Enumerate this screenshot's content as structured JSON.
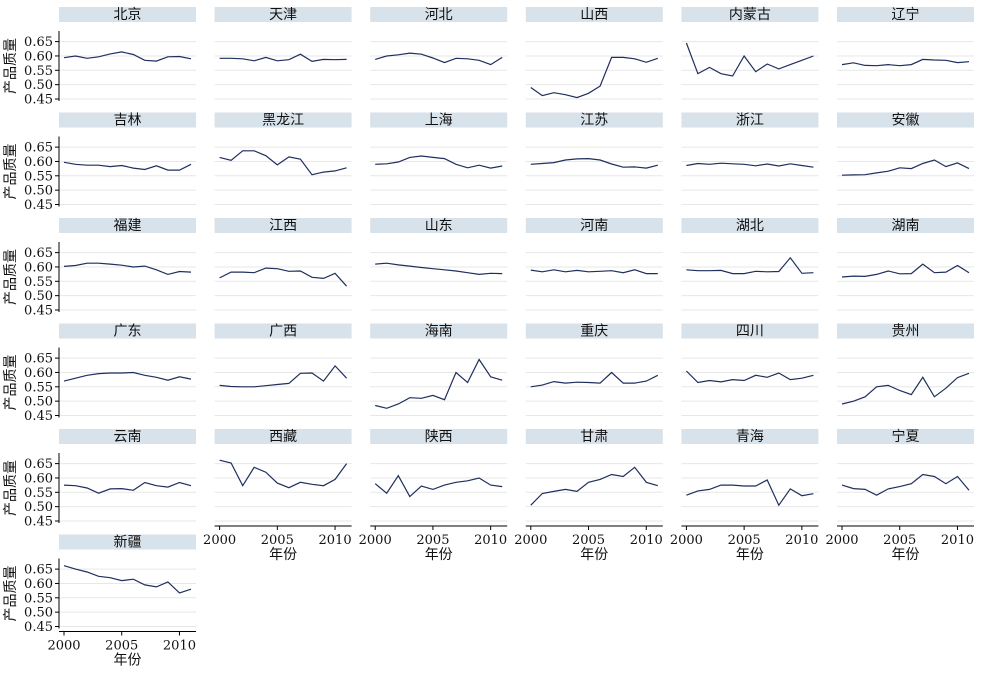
{
  "chart_data": {
    "type": "line",
    "layout": "small-multiples 6 columns",
    "x": [
      2000,
      2001,
      2002,
      2003,
      2004,
      2005,
      2006,
      2007,
      2008,
      2009,
      2010,
      2011
    ],
    "xlim": [
      2000,
      2011
    ],
    "xticks": [
      "2000",
      "2005",
      "2010"
    ],
    "ylim": [
      0.45,
      0.68
    ],
    "yticks": [
      "0.65",
      "0.60",
      "0.55",
      "0.50",
      "0.45"
    ],
    "ylabel": "产品质量",
    "xlabel": "年份",
    "grid": true,
    "series_color": "#1f2f5e",
    "strip_color": "#d8e2ea",
    "series": [
      {
        "name": "北京",
        "values": [
          0.594,
          0.6,
          0.592,
          0.597,
          0.607,
          0.614,
          0.605,
          0.585,
          0.582,
          0.597,
          0.598,
          0.59
        ]
      },
      {
        "name": "天津",
        "values": [
          0.592,
          0.592,
          0.59,
          0.583,
          0.595,
          0.583,
          0.587,
          0.606,
          0.581,
          0.588,
          0.587,
          0.588
        ]
      },
      {
        "name": "河北",
        "values": [
          0.588,
          0.6,
          0.604,
          0.61,
          0.606,
          0.593,
          0.577,
          0.592,
          0.59,
          0.585,
          0.57,
          0.595
        ]
      },
      {
        "name": "山西",
        "values": [
          0.49,
          0.462,
          0.472,
          0.465,
          0.455,
          0.47,
          0.495,
          0.595,
          0.595,
          0.59,
          0.578,
          0.592
        ]
      },
      {
        "name": "内蒙古",
        "values": [
          0.645,
          0.538,
          0.56,
          0.538,
          0.53,
          0.6,
          0.545,
          0.572,
          0.555,
          0.57,
          0.585,
          0.6
        ]
      },
      {
        "name": "辽宁",
        "values": [
          0.57,
          0.576,
          0.567,
          0.566,
          0.57,
          0.566,
          0.57,
          0.588,
          0.586,
          0.585,
          0.577,
          0.58
        ]
      },
      {
        "name": "吉林",
        "values": [
          0.597,
          0.59,
          0.587,
          0.587,
          0.582,
          0.586,
          0.577,
          0.572,
          0.585,
          0.57,
          0.57,
          0.59
        ]
      },
      {
        "name": "黑龙江",
        "values": [
          0.614,
          0.604,
          0.637,
          0.637,
          0.62,
          0.588,
          0.616,
          0.608,
          0.554,
          0.563,
          0.567,
          0.578
        ]
      },
      {
        "name": "上海",
        "values": [
          0.59,
          0.592,
          0.598,
          0.614,
          0.619,
          0.614,
          0.61,
          0.59,
          0.578,
          0.587,
          0.577,
          0.584
        ]
      },
      {
        "name": "江苏",
        "values": [
          0.59,
          0.593,
          0.596,
          0.605,
          0.609,
          0.61,
          0.605,
          0.591,
          0.58,
          0.581,
          0.577,
          0.587
        ]
      },
      {
        "name": "浙江",
        "values": [
          0.586,
          0.593,
          0.59,
          0.594,
          0.592,
          0.59,
          0.585,
          0.591,
          0.584,
          0.592,
          0.586,
          0.58
        ]
      },
      {
        "name": "安徽",
        "values": [
          0.552,
          0.553,
          0.554,
          0.56,
          0.566,
          0.578,
          0.575,
          0.593,
          0.605,
          0.582,
          0.595,
          0.575
        ]
      },
      {
        "name": "福建",
        "values": [
          0.602,
          0.605,
          0.613,
          0.613,
          0.61,
          0.606,
          0.6,
          0.603,
          0.59,
          0.574,
          0.584,
          0.582
        ]
      },
      {
        "name": "江西",
        "values": [
          0.562,
          0.582,
          0.582,
          0.58,
          0.596,
          0.594,
          0.585,
          0.586,
          0.564,
          0.56,
          0.578,
          0.533
        ]
      },
      {
        "name": "山东",
        "values": [
          0.61,
          0.613,
          0.607,
          0.603,
          0.598,
          0.594,
          0.59,
          0.586,
          0.58,
          0.574,
          0.578,
          0.577
        ]
      },
      {
        "name": "河南",
        "values": [
          0.589,
          0.583,
          0.59,
          0.583,
          0.588,
          0.583,
          0.585,
          0.587,
          0.58,
          0.59,
          0.577,
          0.577
        ]
      },
      {
        "name": "湖北",
        "values": [
          0.59,
          0.587,
          0.587,
          0.588,
          0.577,
          0.577,
          0.585,
          0.583,
          0.584,
          0.632,
          0.578,
          0.58
        ]
      },
      {
        "name": "湖南",
        "values": [
          0.565,
          0.568,
          0.567,
          0.574,
          0.586,
          0.576,
          0.577,
          0.61,
          0.58,
          0.582,
          0.605,
          0.58
        ]
      },
      {
        "name": "广东",
        "values": [
          0.57,
          0.58,
          0.59,
          0.596,
          0.598,
          0.598,
          0.6,
          0.59,
          0.583,
          0.573,
          0.585,
          0.577
        ]
      },
      {
        "name": "广西",
        "values": [
          0.555,
          0.551,
          0.55,
          0.55,
          0.554,
          0.558,
          0.562,
          0.597,
          0.598,
          0.57,
          0.623,
          0.58
        ]
      },
      {
        "name": "海南",
        "values": [
          0.485,
          0.475,
          0.49,
          0.512,
          0.51,
          0.52,
          0.505,
          0.6,
          0.565,
          0.645,
          0.585,
          0.573
        ]
      },
      {
        "name": "重庆",
        "values": [
          0.55,
          0.556,
          0.568,
          0.563,
          0.566,
          0.565,
          0.563,
          0.6,
          0.563,
          0.563,
          0.57,
          0.59
        ]
      },
      {
        "name": "四川",
        "values": [
          0.605,
          0.565,
          0.572,
          0.567,
          0.575,
          0.572,
          0.59,
          0.583,
          0.598,
          0.575,
          0.58,
          0.59
        ]
      },
      {
        "name": "贵州",
        "values": [
          0.49,
          0.5,
          0.515,
          0.55,
          0.555,
          0.537,
          0.523,
          0.583,
          0.515,
          0.545,
          0.582,
          0.597
        ]
      },
      {
        "name": "云南",
        "values": [
          0.575,
          0.573,
          0.565,
          0.547,
          0.562,
          0.563,
          0.557,
          0.584,
          0.573,
          0.568,
          0.584,
          0.573
        ]
      },
      {
        "name": "西藏",
        "values": [
          0.662,
          0.652,
          0.573,
          0.637,
          0.62,
          0.582,
          0.566,
          0.585,
          0.578,
          0.573,
          0.595,
          0.65
        ]
      },
      {
        "name": "陕西",
        "values": [
          0.58,
          0.547,
          0.608,
          0.535,
          0.572,
          0.56,
          0.575,
          0.585,
          0.59,
          0.6,
          0.575,
          0.57
        ]
      },
      {
        "name": "甘肃",
        "values": [
          0.505,
          0.546,
          0.553,
          0.56,
          0.553,
          0.585,
          0.595,
          0.612,
          0.605,
          0.637,
          0.585,
          0.573
        ]
      },
      {
        "name": "青海",
        "values": [
          0.54,
          0.555,
          0.56,
          0.575,
          0.575,
          0.572,
          0.572,
          0.593,
          0.505,
          0.562,
          0.538,
          0.545
        ]
      },
      {
        "name": "宁夏",
        "values": [
          0.575,
          0.563,
          0.56,
          0.54,
          0.562,
          0.57,
          0.58,
          0.612,
          0.605,
          0.58,
          0.605,
          0.557
        ]
      },
      {
        "name": "新疆",
        "values": [
          0.662,
          0.65,
          0.64,
          0.625,
          0.62,
          0.61,
          0.615,
          0.595,
          0.588,
          0.605,
          0.567,
          0.58
        ]
      }
    ]
  }
}
